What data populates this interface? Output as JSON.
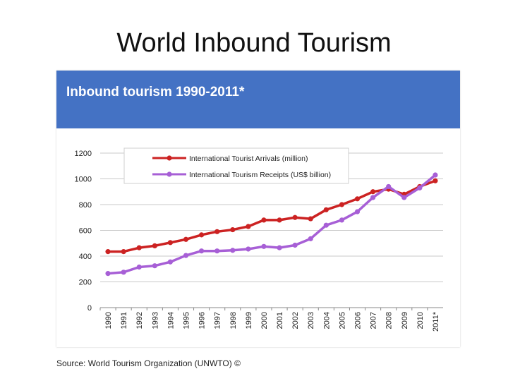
{
  "slide": {
    "title": "World Inbound Tourism",
    "source": "Source: World Tourism Organization (UNWTO) ©"
  },
  "chart_data": {
    "type": "line",
    "title": "Inbound tourism 1990-2011*",
    "xlabel": "",
    "ylabel": "",
    "ylim": [
      0,
      1200
    ],
    "yticks": [
      0,
      200,
      400,
      600,
      800,
      1000,
      1200
    ],
    "grid": true,
    "legend": "top-left",
    "x": [
      "1990",
      "1991",
      "1992",
      "1993",
      "1994",
      "1995",
      "1996",
      "1997",
      "1998",
      "1999",
      "2000",
      "2001",
      "2002",
      "2003",
      "2004",
      "2005",
      "2006",
      "2007",
      "2008",
      "2009",
      "2010",
      "2011*"
    ],
    "series": [
      {
        "name": "International Tourist Arrivals (million)",
        "color": "#cc2222",
        "values": [
          435,
          435,
          465,
          480,
          505,
          530,
          565,
          590,
          605,
          630,
          680,
          680,
          700,
          690,
          760,
          800,
          845,
          900,
          920,
          880,
          940,
          985
        ]
      },
      {
        "name": "International Tourism Receipts (US$ billion)",
        "color": "#a75fd6",
        "values": [
          265,
          275,
          315,
          325,
          355,
          405,
          440,
          440,
          445,
          455,
          475,
          465,
          485,
          535,
          640,
          680,
          745,
          855,
          940,
          855,
          930,
          1030
        ]
      }
    ]
  }
}
